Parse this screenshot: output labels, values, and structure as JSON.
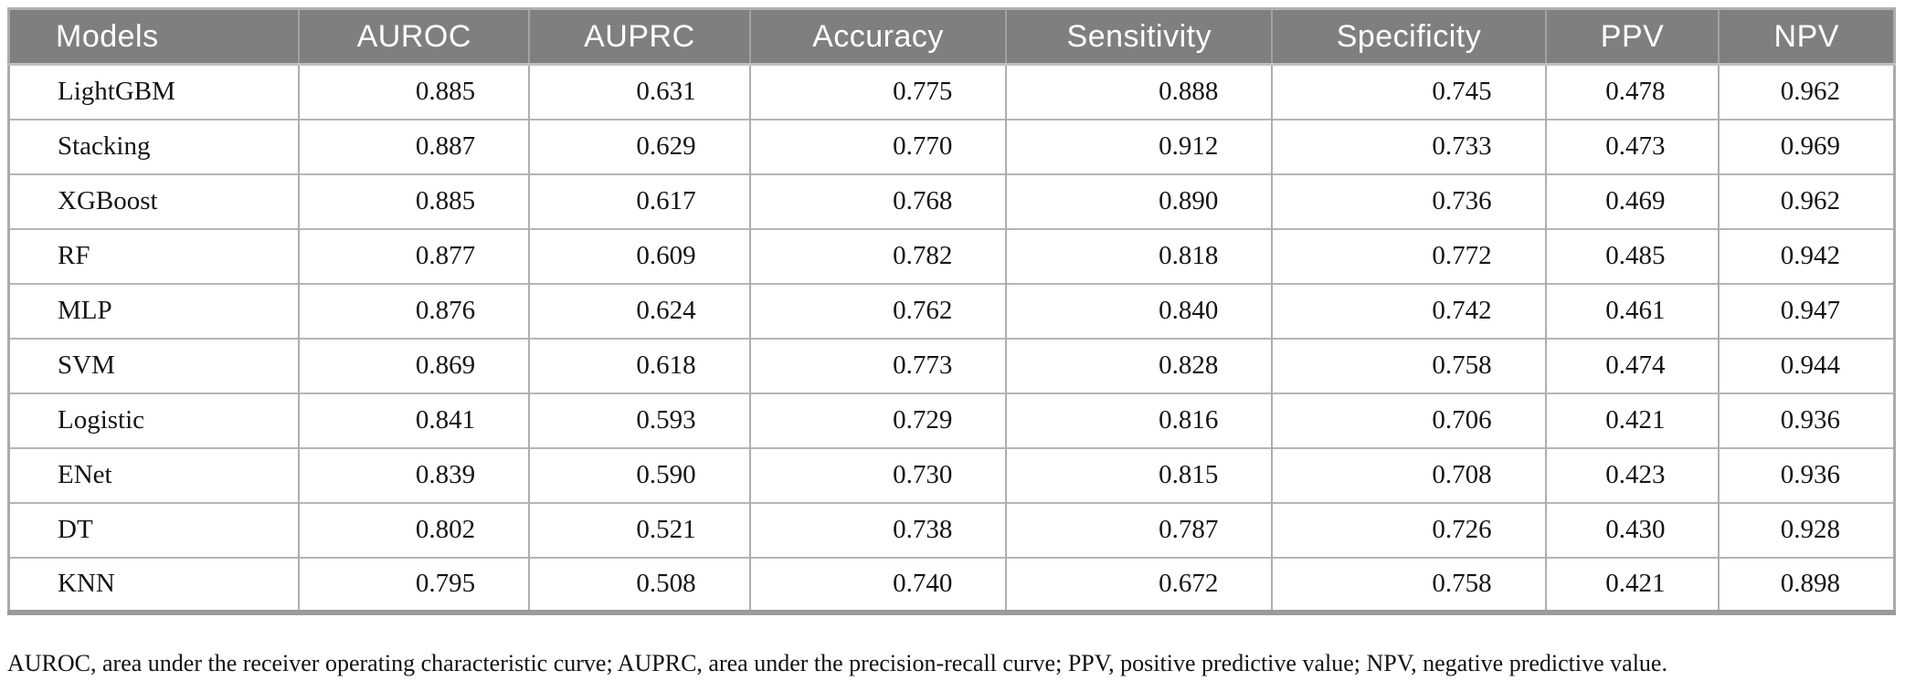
{
  "table": {
    "columns": [
      "Models",
      "AUROC",
      "AUPRC",
      "Accuracy",
      "Sensitivity",
      "Specificity",
      "PPV",
      "NPV"
    ],
    "rows": [
      {
        "model": "LightGBM",
        "values": [
          "0.885",
          "0.631",
          "0.775",
          "0.888",
          "0.745",
          "0.478",
          "0.962"
        ]
      },
      {
        "model": "Stacking",
        "values": [
          "0.887",
          "0.629",
          "0.770",
          "0.912",
          "0.733",
          "0.473",
          "0.969"
        ]
      },
      {
        "model": "XGBoost",
        "values": [
          "0.885",
          "0.617",
          "0.768",
          "0.890",
          "0.736",
          "0.469",
          "0.962"
        ]
      },
      {
        "model": "RF",
        "values": [
          "0.877",
          "0.609",
          "0.782",
          "0.818",
          "0.772",
          "0.485",
          "0.942"
        ]
      },
      {
        "model": "MLP",
        "values": [
          "0.876",
          "0.624",
          "0.762",
          "0.840",
          "0.742",
          "0.461",
          "0.947"
        ]
      },
      {
        "model": "SVM",
        "values": [
          "0.869",
          "0.618",
          "0.773",
          "0.828",
          "0.758",
          "0.474",
          "0.944"
        ]
      },
      {
        "model": "Logistic",
        "values": [
          "0.841",
          "0.593",
          "0.729",
          "0.816",
          "0.706",
          "0.421",
          "0.936"
        ]
      },
      {
        "model": "ENet",
        "values": [
          "0.839",
          "0.590",
          "0.730",
          "0.815",
          "0.708",
          "0.423",
          "0.936"
        ]
      },
      {
        "model": "DT",
        "values": [
          "0.802",
          "0.521",
          "0.738",
          "0.787",
          "0.726",
          "0.430",
          "0.928"
        ]
      },
      {
        "model": "KNN",
        "values": [
          "0.795",
          "0.508",
          "0.740",
          "0.672",
          "0.758",
          "0.421",
          "0.898"
        ]
      }
    ],
    "colors": {
      "header_background": "#7f7f7f",
      "header_text": "#ffffff",
      "outer_border": "#ababab",
      "bottom_bar": "#9b9b9b",
      "grid_line": "#b5b5b5",
      "body_text": "#141414"
    }
  },
  "footnote": {
    "text": "AUROC, area under the receiver operating characteristic curve; AUPRC, area under the precision-recall curve; PPV, positive predictive value; NPV, negative predictive value."
  },
  "chart_data": {
    "type": "table",
    "columns": [
      "Models",
      "AUROC",
      "AUPRC",
      "Accuracy",
      "Sensitivity",
      "Specificity",
      "PPV",
      "NPV"
    ],
    "rows": [
      [
        "LightGBM",
        0.885,
        0.631,
        0.775,
        0.888,
        0.745,
        0.478,
        0.962
      ],
      [
        "Stacking",
        0.887,
        0.629,
        0.77,
        0.912,
        0.733,
        0.473,
        0.969
      ],
      [
        "XGBoost",
        0.885,
        0.617,
        0.768,
        0.89,
        0.736,
        0.469,
        0.962
      ],
      [
        "RF",
        0.877,
        0.609,
        0.782,
        0.818,
        0.772,
        0.485,
        0.942
      ],
      [
        "MLP",
        0.876,
        0.624,
        0.762,
        0.84,
        0.742,
        0.461,
        0.947
      ],
      [
        "SVM",
        0.869,
        0.618,
        0.773,
        0.828,
        0.758,
        0.474,
        0.944
      ],
      [
        "Logistic",
        0.841,
        0.593,
        0.729,
        0.816,
        0.706,
        0.421,
        0.936
      ],
      [
        "ENet",
        0.839,
        0.59,
        0.73,
        0.815,
        0.708,
        0.423,
        0.936
      ],
      [
        "DT",
        0.802,
        0.521,
        0.738,
        0.787,
        0.726,
        0.43,
        0.928
      ],
      [
        "KNN",
        0.795,
        0.508,
        0.74,
        0.672,
        0.758,
        0.421,
        0.898
      ]
    ]
  }
}
